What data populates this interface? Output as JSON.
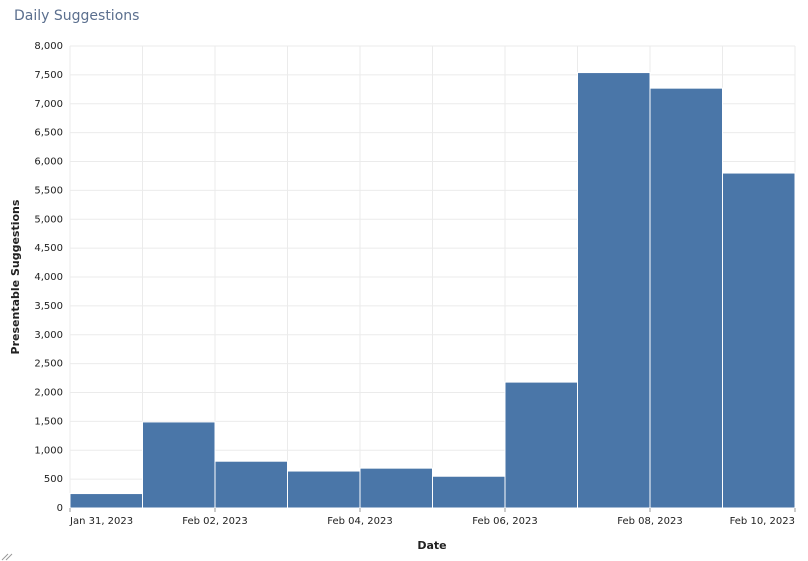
{
  "chart_data": {
    "type": "bar",
    "title": "Daily Suggestions",
    "x_label": "Date",
    "y_label": "Presentable Suggestions",
    "x": [
      "2023-01-31",
      "2023-02-01",
      "2023-02-02",
      "2023-02-03",
      "2023-02-04",
      "2023-02-05",
      "2023-02-06",
      "2023-02-07",
      "2023-02-08",
      "2023-02-09"
    ],
    "values": [
      250,
      1490,
      810,
      640,
      690,
      550,
      2180,
      7540,
      7270,
      5800
    ],
    "color": "#4a76a8",
    "xlim": [
      "2023-01-31",
      "2023-02-10"
    ],
    "xticks": [
      {
        "value": "2023-01-31",
        "label": "Jan 31, 2023"
      },
      {
        "value": "2023-02-02",
        "label": "Feb 02, 2023"
      },
      {
        "value": "2023-02-04",
        "label": "Feb 04, 2023"
      },
      {
        "value": "2023-02-06",
        "label": "Feb 06, 2023"
      },
      {
        "value": "2023-02-08",
        "label": "Feb 08, 2023"
      },
      {
        "value": "2023-02-10",
        "label": "Feb 10, 2023"
      }
    ],
    "ylim": [
      0,
      8000
    ],
    "yticks": [
      0,
      500,
      {
        "value": 1000,
        "label": "1,000"
      },
      {
        "value": 1500,
        "label": "1,500"
      },
      {
        "value": 2000,
        "label": "2,000"
      },
      {
        "value": 2500,
        "label": "2,500"
      },
      {
        "value": 3000,
        "label": "3,000"
      },
      {
        "value": 3500,
        "label": "3,500"
      },
      {
        "value": 4000,
        "label": "4,000"
      },
      {
        "value": 4500,
        "label": "4,500"
      },
      {
        "value": 5000,
        "label": "5,000"
      },
      {
        "value": 5500,
        "label": "5,500"
      },
      {
        "value": 6000,
        "label": "6,000"
      },
      {
        "value": 6500,
        "label": "6,500"
      },
      {
        "value": 7000,
        "label": "7,000"
      },
      {
        "value": 7500,
        "label": "7,500"
      },
      {
        "value": 8000,
        "label": "8,000"
      }
    ],
    "grid": true
  }
}
